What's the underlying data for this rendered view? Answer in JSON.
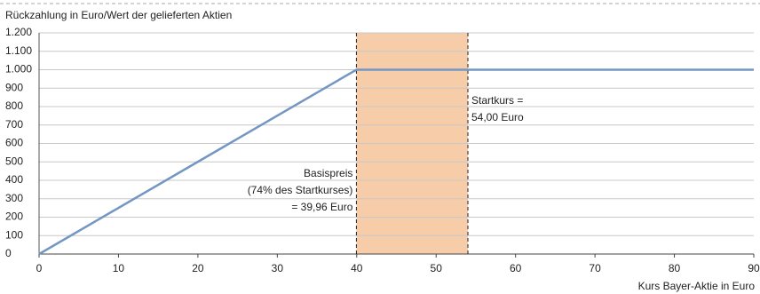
{
  "chart_data": {
    "type": "line",
    "y_axis_label": "Rückzahlung in Euro/Wert der gelieferten Aktien",
    "x_axis_label": "Kurs Bayer-Aktie in Euro",
    "series": [
      {
        "name": "Rückzahlung",
        "color": "#7396c3",
        "x": [
          0,
          39.96,
          90
        ],
        "values": [
          0,
          1000,
          1000
        ]
      }
    ],
    "xlim": [
      0,
      90
    ],
    "xticks": [
      0,
      10,
      20,
      30,
      40,
      50,
      60,
      70,
      80,
      90
    ],
    "ylim": [
      0,
      1200
    ],
    "yticks": [
      0,
      100,
      200,
      300,
      400,
      500,
      600,
      700,
      800,
      900,
      {
        "value": 1000,
        "label": "1.000"
      },
      {
        "value": 1100,
        "label": "1.100"
      },
      {
        "value": 1200,
        "label": "1.200"
      }
    ],
    "grid": true,
    "reference_lines": [
      39.96,
      54
    ],
    "highlight_color": "#f7cca8",
    "annotations": [
      {
        "lines": [
          "Basispreis",
          "(74% des Startkurses)",
          "= 39,96 Euro"
        ]
      },
      {
        "lines": [
          "Startkurs =",
          "54,00 Euro"
        ]
      }
    ]
  }
}
